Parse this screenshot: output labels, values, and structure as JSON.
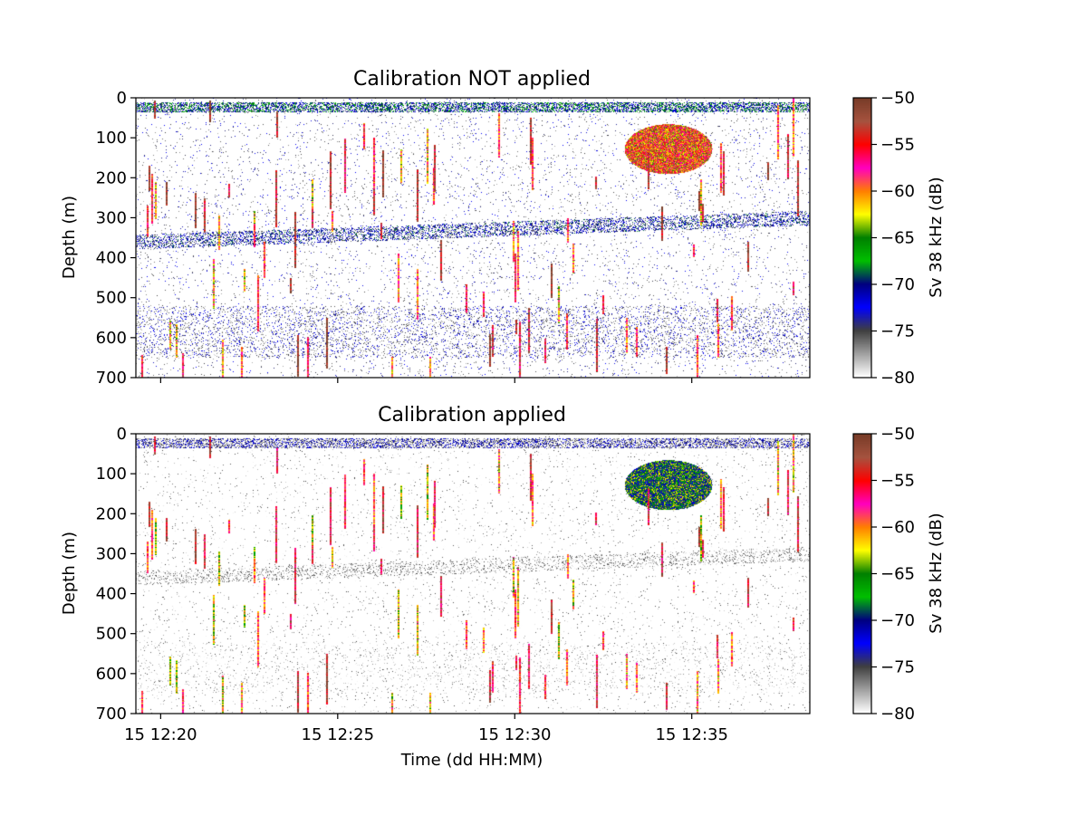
{
  "chart_data": [
    {
      "type": "heatmap",
      "title": "Calibration NOT applied",
      "xlabel": "",
      "ylabel": "Depth (m)",
      "ylim": [
        700,
        0
      ],
      "y_ticks": [
        "0",
        "100",
        "200",
        "300",
        "400",
        "500",
        "600",
        "700"
      ],
      "x_ticks": [
        "15 12:20",
        "15 12:25",
        "15 12:30",
        "15 12:35"
      ],
      "x_range": [
        "15 12:19:18",
        "15 12:38:20"
      ],
      "colorbar": {
        "label": "Sv 38 kHz (dB)",
        "range": [
          -80,
          -50
        ],
        "ticks": [
          "-50",
          "-55",
          "-60",
          "-65",
          "-70",
          "-75",
          "-80"
        ],
        "colors": [
          "#ffffff",
          "#a0a0a0",
          "#3f3f3f",
          "#0000ff",
          "#00007f",
          "#00bf00",
          "#007f00",
          "#ffff00",
          "#ff7f00",
          "#ff00bf",
          "#ff0000",
          "#a6533f",
          "#783c28"
        ]
      },
      "features": [
        {
          "name": "surface layer",
          "depth_m": [
            10,
            35
          ],
          "level_db": -70
        },
        {
          "name": "mid-water scattering layer",
          "depth_from_m": 360,
          "depth_to_m": 300,
          "level_db": -72
        },
        {
          "name": "deep scattering layer",
          "depth_m": [
            520,
            650
          ],
          "level_db": -75
        },
        {
          "name": "fish school",
          "time": "15 12:34:20",
          "depth_m": [
            65,
            190
          ],
          "level_db": -58
        }
      ]
    },
    {
      "type": "heatmap",
      "title": "Calibration applied",
      "xlabel": "Time (dd HH:MM)",
      "ylabel": "Depth (m)",
      "ylim": [
        700,
        0
      ],
      "y_ticks": [
        "0",
        "100",
        "200",
        "300",
        "400",
        "500",
        "600",
        "700"
      ],
      "x_ticks": [
        "15 12:20",
        "15 12:25",
        "15 12:30",
        "15 12:35"
      ],
      "x_range": [
        "15 12:19:18",
        "15 12:38:20"
      ],
      "colorbar": {
        "label": "Sv 38 kHz (dB)",
        "range": [
          -80,
          -50
        ],
        "ticks": [
          "-50",
          "-55",
          "-60",
          "-65",
          "-70",
          "-75",
          "-80"
        ],
        "colors": [
          "#ffffff",
          "#a0a0a0",
          "#3f3f3f",
          "#0000ff",
          "#00007f",
          "#00bf00",
          "#007f00",
          "#ffff00",
          "#ff7f00",
          "#ff00bf",
          "#ff0000",
          "#a6533f",
          "#783c28"
        ]
      },
      "features": [
        {
          "name": "surface layer",
          "depth_m": [
            10,
            35
          ],
          "level_db": -72
        },
        {
          "name": "mid-water scattering layer",
          "depth_from_m": 360,
          "depth_to_m": 300,
          "level_db": -76
        },
        {
          "name": "deep scattering layer",
          "depth_m": [
            520,
            650
          ],
          "level_db": -78
        },
        {
          "name": "fish school",
          "time": "15 12:34:20",
          "depth_m": [
            65,
            190
          ],
          "level_db": -65
        }
      ]
    }
  ]
}
